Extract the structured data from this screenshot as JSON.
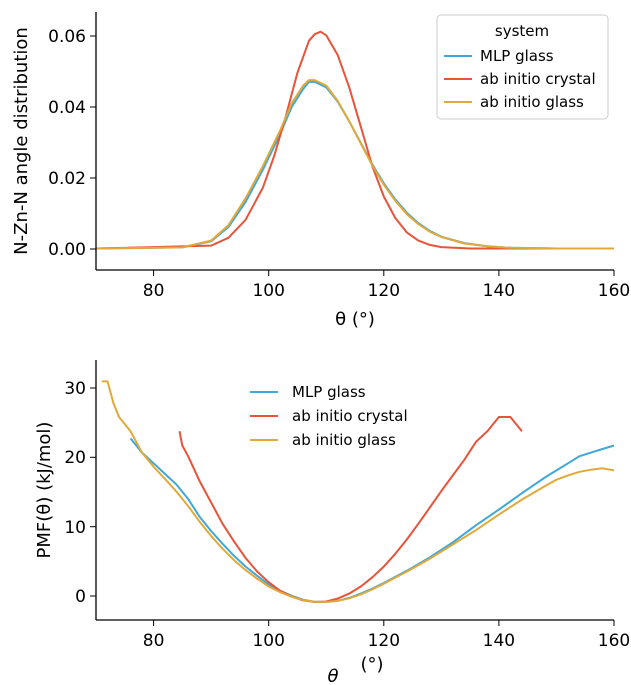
{
  "colors": {
    "mlp_glass": "#3fa8d8",
    "ab_initio_crystal": "#e8533a",
    "ab_initio_glass": "#e0a93a"
  },
  "chart_data": [
    {
      "type": "line",
      "xlabel": "θ (°)",
      "ylabel": "N-Zn-N angle distribution",
      "xlim": [
        70,
        160
      ],
      "ylim": [
        -0.006,
        0.066
      ],
      "xticks": [
        "80",
        "100",
        "120",
        "140",
        "160"
      ],
      "yticks": [
        "0.00",
        "0.02",
        "0.04",
        "0.06"
      ],
      "legend_title": "system",
      "legend_placement": "top-right",
      "series": [
        {
          "name": "MLP glass",
          "x": [
            70,
            85,
            90,
            93,
            96,
            99,
            102,
            104,
            106,
            107,
            108,
            110,
            112,
            114,
            116,
            118,
            120,
            122,
            124,
            126,
            128,
            130,
            134,
            138,
            142,
            150,
            160
          ],
          "y": [
            0,
            0.0003,
            0.002,
            0.006,
            0.013,
            0.022,
            0.032,
            0.0395,
            0.0445,
            0.0465,
            0.0465,
            0.045,
            0.041,
            0.0355,
            0.0295,
            0.0235,
            0.0182,
            0.0137,
            0.01,
            0.0071,
            0.0049,
            0.0033,
            0.0015,
            0.0006,
            0.0002,
            0,
            0
          ]
        },
        {
          "name": "ab initio crystal",
          "x": [
            70,
            90,
            93,
            96,
            99,
            101,
            103,
            105,
            107,
            108,
            109,
            110,
            112,
            114,
            116,
            118,
            120,
            122,
            124,
            126,
            128,
            130,
            135,
            160
          ],
          "y": [
            0,
            0.0008,
            0.003,
            0.008,
            0.017,
            0.026,
            0.037,
            0.049,
            0.058,
            0.0598,
            0.0605,
            0.0595,
            0.054,
            0.045,
            0.034,
            0.023,
            0.0145,
            0.0085,
            0.0045,
            0.0022,
            0.001,
            0.0004,
            0,
            0
          ]
        },
        {
          "name": "ab initio glass",
          "x": [
            70,
            85,
            90,
            93,
            96,
            99,
            102,
            104,
            106,
            107,
            108,
            110,
            112,
            114,
            116,
            118,
            120,
            122,
            124,
            126,
            128,
            130,
            134,
            138,
            142,
            150,
            160
          ],
          "y": [
            0,
            0.0003,
            0.0022,
            0.0065,
            0.014,
            0.023,
            0.033,
            0.0405,
            0.0455,
            0.047,
            0.047,
            0.0455,
            0.0412,
            0.0355,
            0.0293,
            0.0232,
            0.0178,
            0.0133,
            0.0096,
            0.0068,
            0.0047,
            0.0032,
            0.0014,
            0.0006,
            0.0002,
            0,
            0
          ]
        }
      ]
    },
    {
      "type": "line",
      "xlabel": "θ",
      "xlabel_unit": "(°)",
      "ylabel": "PMF(θ) (kJ/mol)",
      "xlim": [
        70,
        160
      ],
      "ylim": [
        -2.5,
        34
      ],
      "xticks": [
        "80",
        "100",
        "120",
        "140",
        "160"
      ],
      "yticks": [
        "0",
        "10",
        "20",
        "30"
      ],
      "legend_placement": "upper-center",
      "series": [
        {
          "name": "MLP glass",
          "x": [
            76,
            78,
            80,
            82,
            84,
            86,
            88,
            90,
            92,
            94,
            96,
            98,
            100,
            102,
            104,
            106,
            108,
            110,
            112,
            114,
            116,
            118,
            120,
            124,
            128,
            132,
            136,
            140,
            144,
            148,
            150,
            152,
            154,
            156,
            158,
            160
          ],
          "y": [
            23,
            21,
            19.5,
            18,
            16.5,
            14.5,
            12,
            10,
            8.2,
            6.5,
            5,
            3.7,
            2.5,
            1.6,
            0.9,
            0.35,
            0.05,
            0.02,
            0.2,
            0.6,
            1.2,
            1.9,
            2.7,
            4.4,
            6.3,
            8.4,
            10.8,
            13,
            15.3,
            17.5,
            18.5,
            19.5,
            20.5,
            21,
            21.5,
            22
          ]
        },
        {
          "name": "ab initio crystal",
          "x": [
            84.5,
            85,
            86,
            88,
            90,
            92,
            94,
            96,
            98,
            100,
            102,
            104,
            106,
            108,
            110,
            112,
            114,
            116,
            118,
            120,
            122,
            124,
            126,
            128,
            130,
            132,
            134,
            136,
            138,
            139,
            140,
            142,
            144
          ],
          "y": [
            24,
            22,
            20.5,
            17,
            14,
            11,
            8.5,
            6.2,
            4.3,
            2.8,
            1.6,
            0.8,
            0.25,
            0.02,
            0.1,
            0.5,
            1.2,
            2.2,
            3.5,
            5,
            6.8,
            8.8,
            11,
            13.3,
            15.6,
            17.8,
            20,
            22.5,
            24,
            25,
            26,
            26,
            24
          ]
        },
        {
          "name": "ab initio glass",
          "x": [
            71,
            72,
            73,
            74,
            75,
            76,
            78,
            80,
            82,
            84,
            86,
            88,
            90,
            92,
            94,
            96,
            98,
            100,
            102,
            104,
            106,
            108,
            110,
            112,
            114,
            116,
            118,
            120,
            124,
            128,
            132,
            136,
            140,
            144,
            148,
            150,
            152,
            154,
            156,
            158,
            160
          ],
          "y": [
            31,
            31,
            28,
            26,
            25,
            24,
            21,
            19,
            17.3,
            15.5,
            13.5,
            11.3,
            9.3,
            7.5,
            5.9,
            4.5,
            3.3,
            2.2,
            1.4,
            0.75,
            0.3,
            0.05,
            0.02,
            0.18,
            0.55,
            1.1,
            1.8,
            2.6,
            4.3,
            6.1,
            8.1,
            10.1,
            12.3,
            14.4,
            16.3,
            17.2,
            17.8,
            18.3,
            18.6,
            18.8,
            18.5
          ]
        }
      ]
    }
  ]
}
